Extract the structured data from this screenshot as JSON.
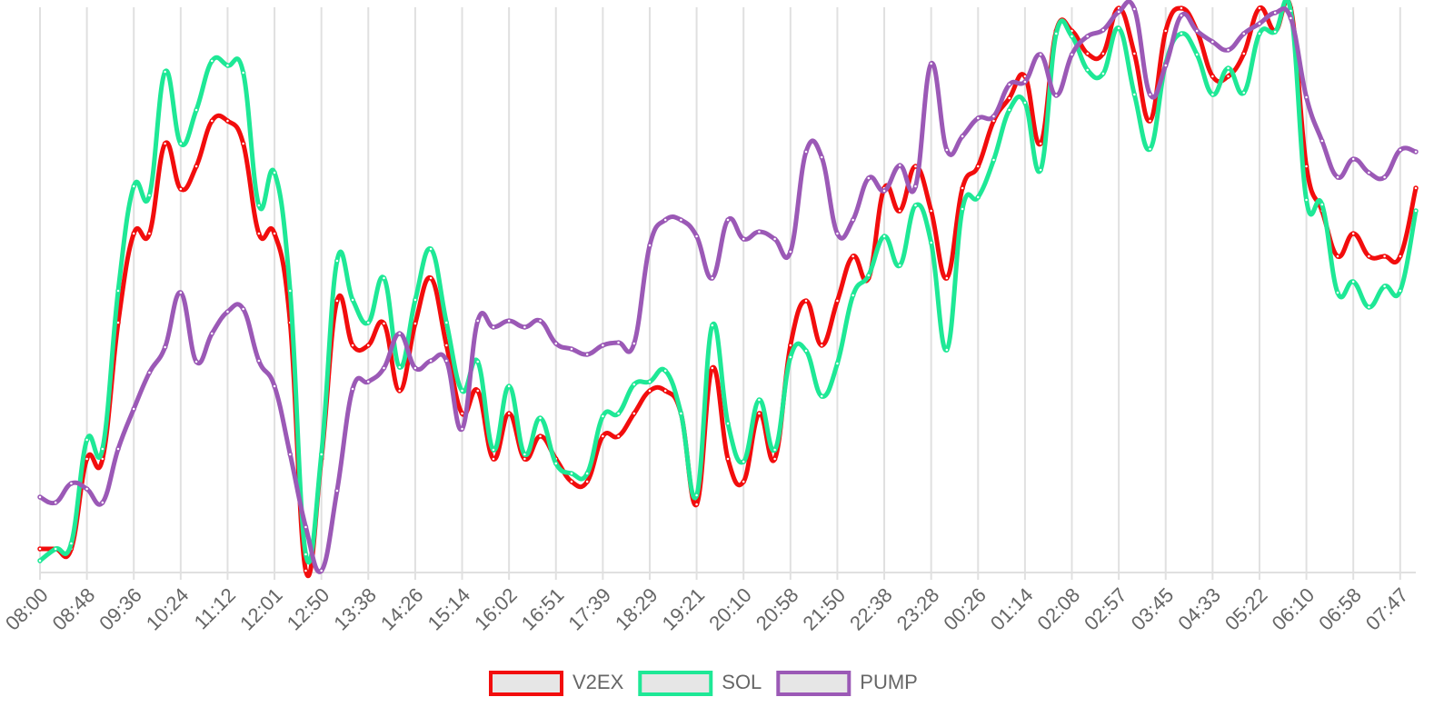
{
  "chart_data": {
    "type": "line",
    "categories": [
      "08:00",
      null,
      null,
      "08:48",
      null,
      null,
      "09:36",
      null,
      null,
      "10:24",
      null,
      null,
      "11:12",
      null,
      null,
      "12:01",
      null,
      null,
      "12:50",
      null,
      null,
      "13:38",
      null,
      null,
      "14:26",
      null,
      null,
      "15:14",
      null,
      null,
      "16:02",
      null,
      null,
      "16:51",
      null,
      null,
      "17:39",
      null,
      null,
      "18:29",
      null,
      null,
      "19:21",
      null,
      null,
      "20:10",
      null,
      null,
      "20:58",
      null,
      null,
      "21:50",
      null,
      null,
      "22:38",
      null,
      null,
      "23:28",
      null,
      null,
      "00:26",
      null,
      null,
      "01:14",
      null,
      null,
      "02:08",
      null,
      null,
      "02:57",
      null,
      null,
      "03:45",
      null,
      null,
      "04:33",
      null,
      null,
      "05:22",
      null,
      null,
      "06:10",
      null,
      null,
      "06:58",
      null,
      null,
      "07:47",
      null
    ],
    "series": [
      {
        "name": "V2EX",
        "color": "#f20d0d",
        "values": [
          26,
          26,
          26,
          125,
          125,
          275,
          373,
          373,
          472,
          422,
          447,
          497,
          497,
          472,
          373,
          373,
          275,
          2,
          125,
          299,
          250,
          250,
          274,
          200,
          274,
          324,
          250,
          175,
          200,
          125,
          175,
          125,
          150,
          125,
          100,
          100,
          150,
          150,
          175,
          200,
          200,
          175,
          75,
          225,
          125,
          100,
          175,
          125,
          250,
          299,
          250,
          299,
          348,
          324,
          423,
          398,
          447,
          398,
          324,
          423,
          447,
          497,
          522,
          546,
          472,
          596,
          596,
          571,
          571,
          621,
          571,
          497,
          596,
          621,
          596,
          546,
          546,
          571,
          621,
          596,
          621,
          447,
          398,
          348,
          373,
          348,
          348,
          348,
          423
        ]
      },
      {
        "name": "SOL",
        "color": "#1ee896",
        "values": [
          13,
          26,
          32,
          146,
          136,
          310,
          425,
          415,
          551,
          472,
          509,
          563,
          558,
          550,
          404,
          440,
          310,
          20,
          130,
          343,
          300,
          275,
          324,
          226,
          300,
          356,
          275,
          200,
          232,
          135,
          205,
          130,
          170,
          120,
          109,
          109,
          172,
          175,
          207,
          210,
          222,
          175,
          85,
          272,
          164,
          122,
          190,
          135,
          237,
          244,
          194,
          230,
          305,
          327,
          370,
          338,
          404,
          363,
          245,
          400,
          413,
          454,
          509,
          517,
          443,
          593,
          590,
          553,
          549,
          599,
          526,
          466,
          560,
          593,
          570,
          526,
          555,
          528,
          593,
          595,
          618,
          410,
          405,
          308,
          320,
          292,
          315,
          310,
          398
        ]
      },
      {
        "name": "PUMP",
        "color": "#9b59b6",
        "values": [
          83,
          77,
          98,
          92,
          77,
          136,
          180,
          220,
          248,
          308,
          232,
          263,
          287,
          290,
          233,
          205,
          130,
          50,
          2,
          90,
          202,
          210,
          225,
          263,
          225,
          233,
          233,
          158,
          277,
          270,
          277,
          270,
          277,
          252,
          246,
          240,
          250,
          253,
          252,
          360,
          388,
          388,
          370,
          324,
          388,
          367,
          375,
          367,
          353,
          463,
          457,
          373,
          388,
          434,
          420,
          448,
          425,
          560,
          465,
          480,
          500,
          502,
          537,
          540,
          570,
          525,
          570,
          590,
          597,
          617,
          620,
          526,
          558,
          613,
          596,
          584,
          575,
          593,
          604,
          616,
          610,
          523,
          475,
          435,
          455,
          440,
          435,
          465,
          463
        ]
      }
    ],
    "ylim": [
      0,
      622
    ],
    "grid": true,
    "legend": "bottom"
  }
}
